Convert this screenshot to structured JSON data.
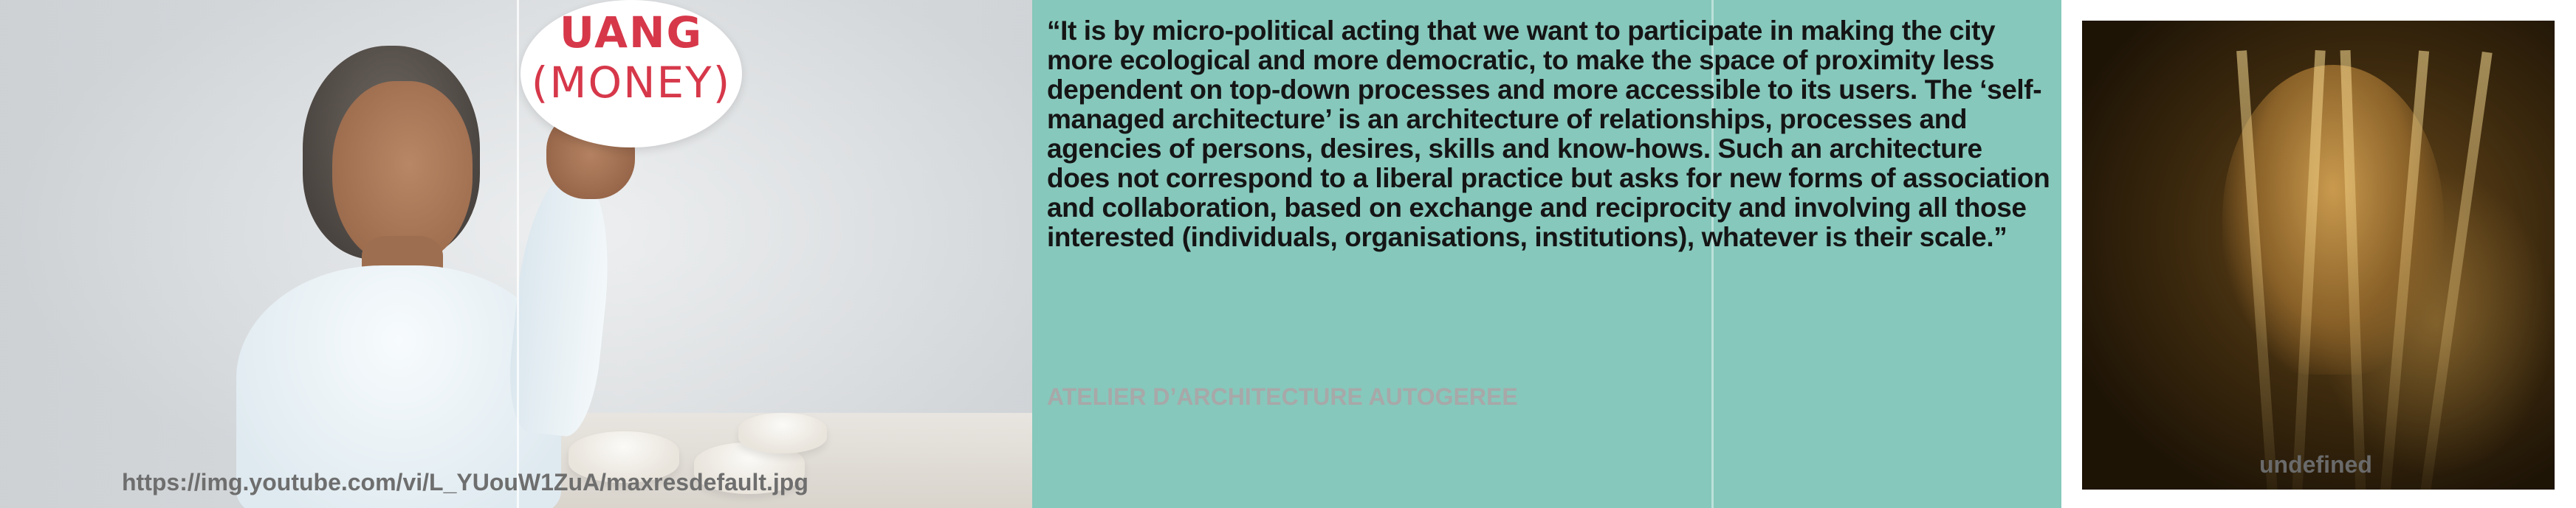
{
  "photo_panel": {
    "sign_line1": "UANG",
    "sign_line2": "(MONEY)",
    "caption": "https://img.youtube.com/vi/L_YUouW1ZuA/maxresdefault.jpg"
  },
  "quote_panel": {
    "quote": "“It is by micro-political acting that we want to participate in making the city more ecological and more democratic, to make the space of proximity less dependent on top-down processes and more accessible to its users. The ‘self-managed architecture’ is an architecture of relationships, processes and agencies of persons, desires, skills and know-hows. Such an architecture does not correspond to a liberal practice but asks for new forms of association and collaboration, based on exchange and reciprocity and involving all those interested (individuals, organisations, institutions), whatever is their scale.”",
    "author": "ATELIER D’ARCHITECTURE AUTOGEREE",
    "background_color": "#86c8bc"
  },
  "right_panel": {
    "caption": "undefined"
  }
}
